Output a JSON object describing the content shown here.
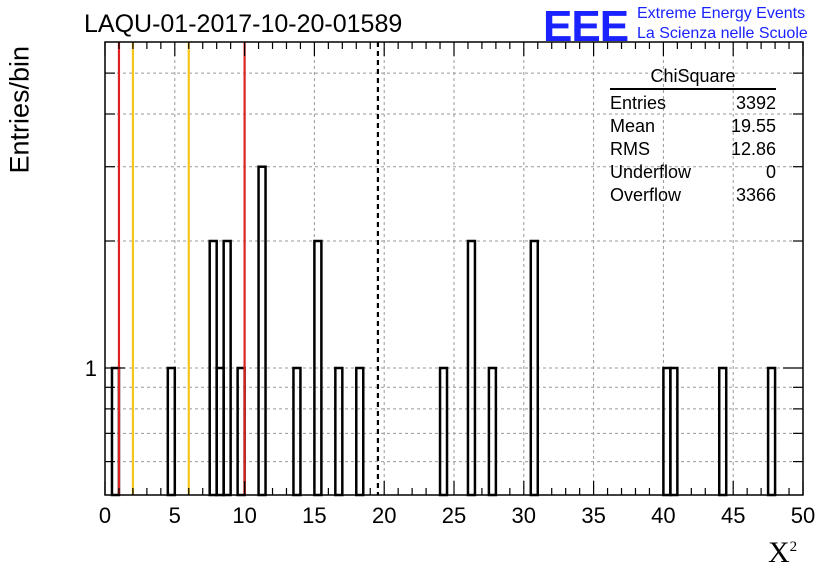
{
  "chart_data": {
    "type": "histogram",
    "title": "LAQU-01-2017-10-20-01589",
    "xlabel": "X",
    "xlabel_sup": "2",
    "ylabel": "Entries/bin",
    "y_scale": "log",
    "xlim": [
      0,
      50
    ],
    "ylim": [
      0.5,
      6
    ],
    "bin_width": 0.5,
    "grid": true,
    "x_ticks": [
      "0",
      "5",
      "10",
      "15",
      "20",
      "25",
      "30",
      "35",
      "40",
      "45",
      "50"
    ],
    "y_tick_labels": [
      "1"
    ],
    "bins": [
      {
        "x": 0.5,
        "count": 1
      },
      {
        "x": 4.5,
        "count": 1
      },
      {
        "x": 7.5,
        "count": 2
      },
      {
        "x": 8.0,
        "count": 1
      },
      {
        "x": 8.5,
        "count": 2
      },
      {
        "x": 9.5,
        "count": 1
      },
      {
        "x": 11.0,
        "count": 3
      },
      {
        "x": 13.5,
        "count": 1
      },
      {
        "x": 15.0,
        "count": 2
      },
      {
        "x": 16.5,
        "count": 1
      },
      {
        "x": 18.0,
        "count": 1
      },
      {
        "x": 24.0,
        "count": 1
      },
      {
        "x": 26.0,
        "count": 2
      },
      {
        "x": 27.5,
        "count": 1
      },
      {
        "x": 30.5,
        "count": 2
      },
      {
        "x": 40.0,
        "count": 1
      },
      {
        "x": 40.5,
        "count": 1
      },
      {
        "x": 44.0,
        "count": 1
      },
      {
        "x": 47.5,
        "count": 1
      }
    ],
    "vertical_lines": [
      {
        "x": 1,
        "color": "#dd2222",
        "style": "solid"
      },
      {
        "x": 10,
        "color": "#dd2222",
        "style": "solid"
      },
      {
        "x": 2,
        "color": "#f5c518",
        "style": "solid"
      },
      {
        "x": 6,
        "color": "#f5c518",
        "style": "solid"
      },
      {
        "x": 19.55,
        "color": "#000000",
        "style": "dashed"
      }
    ],
    "stats_box": {
      "title": "ChiSquare",
      "rows": [
        {
          "label": "Entries",
          "value": "3392"
        },
        {
          "label": "Mean",
          "value": "19.55"
        },
        {
          "label": "RMS",
          "value": "12.86"
        },
        {
          "label": "Underflow",
          "value": "0"
        },
        {
          "label": "Overflow",
          "value": "3366"
        }
      ]
    }
  },
  "logo": {
    "text": "EEE",
    "line1": "Extreme Energy Events",
    "line2": "La Scienza nelle Scuole",
    "color": "#1a22ff"
  }
}
